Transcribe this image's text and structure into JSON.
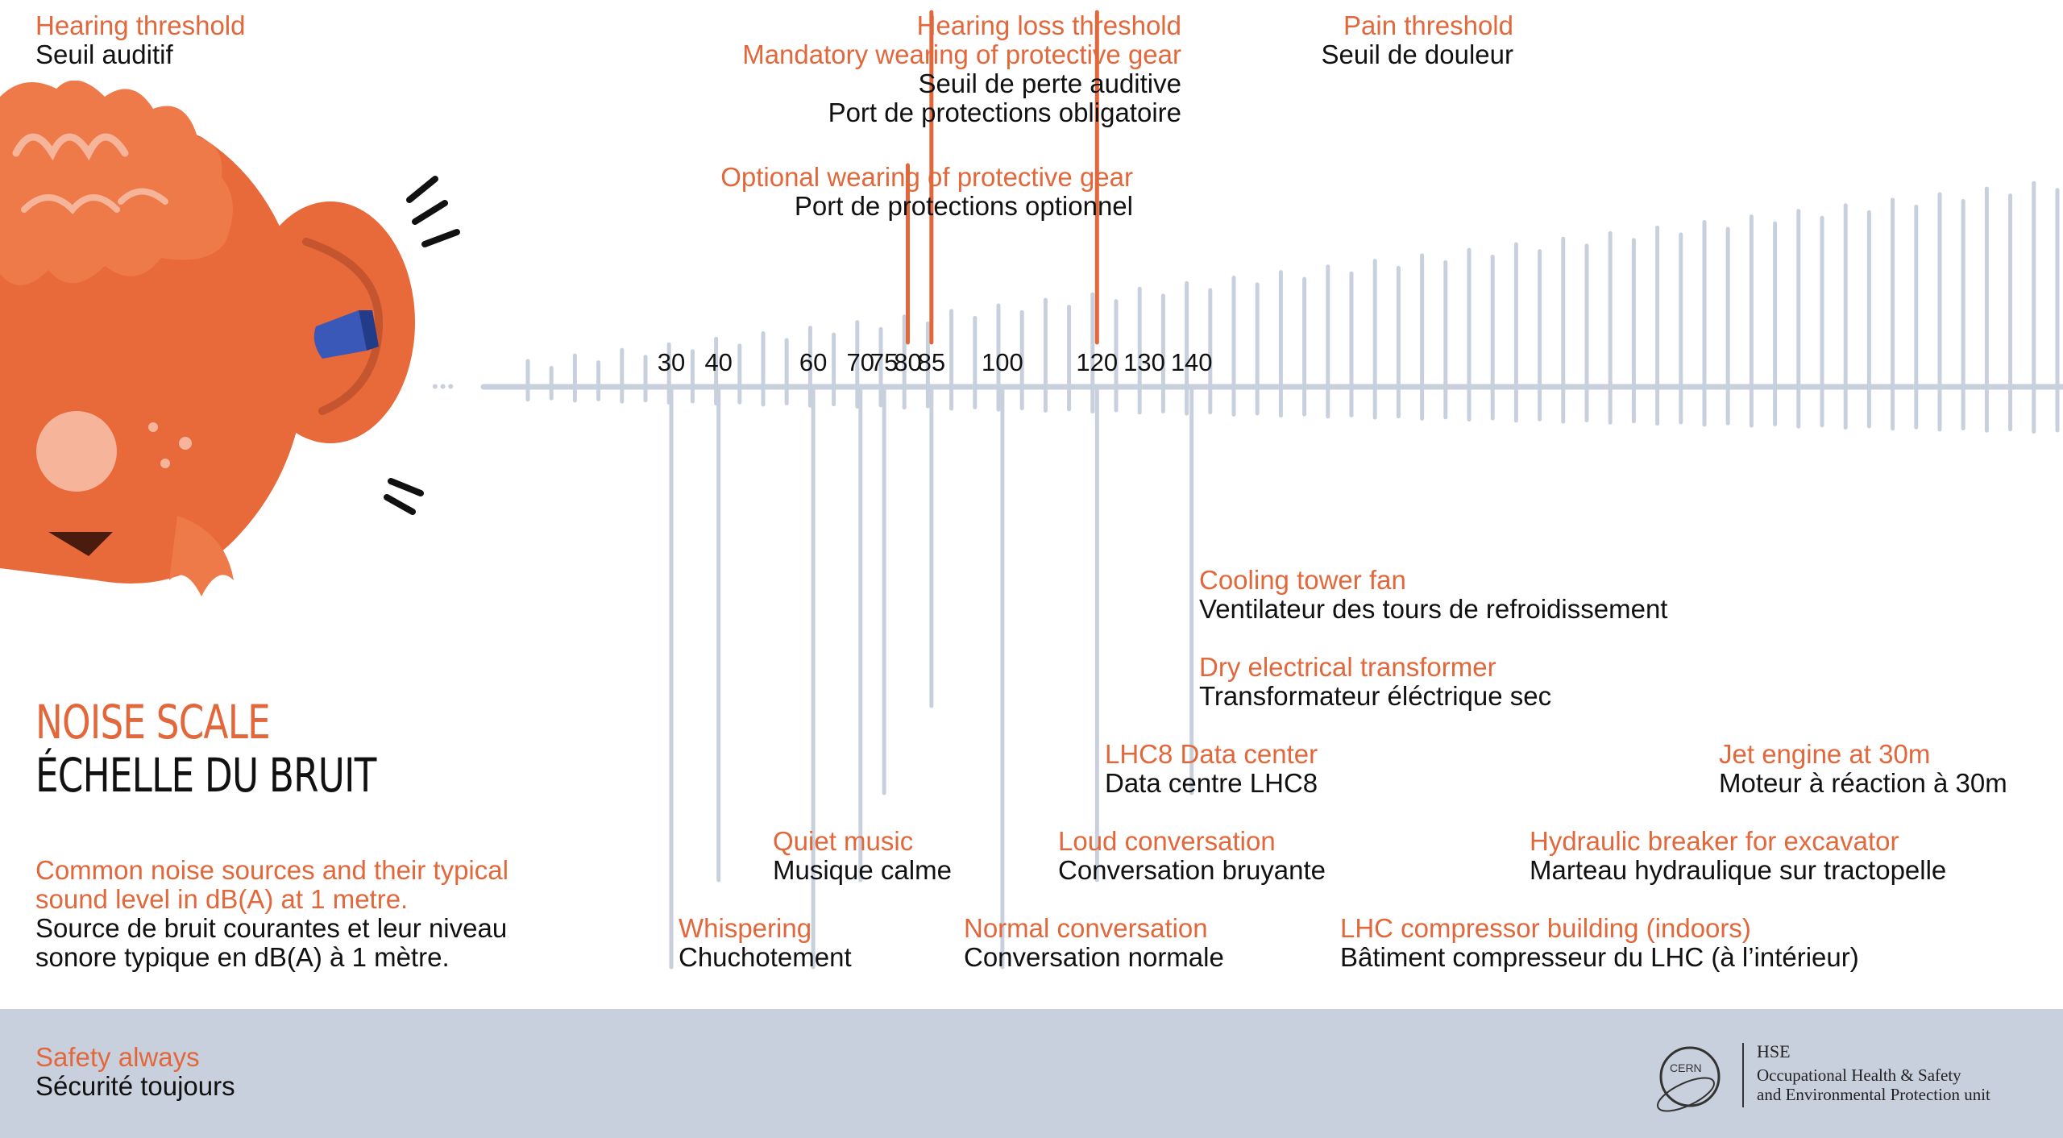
{
  "scale": {
    "ticks": [
      30,
      40,
      60,
      70,
      75,
      80,
      85,
      100,
      120,
      130,
      140
    ],
    "tick_labels": [
      "30",
      "40",
      "60",
      "70",
      "75",
      "80",
      "85",
      "100",
      "120",
      "130",
      "140"
    ],
    "ellipsis": "•••"
  },
  "thresholds": {
    "hearing": {
      "en": "Hearing threshold",
      "fr": "Seuil auditif"
    },
    "optional_gear": {
      "en": "Optional wearing of protective gear",
      "fr": "Port de protections optionnel",
      "db": 80
    },
    "hearing_loss": {
      "en1": "Hearing loss threshold",
      "en2": "Mandatory wearing of protective gear",
      "fr1": "Seuil de perte auditive",
      "fr2": "Port de protections obligatoire",
      "db": 85
    },
    "pain": {
      "en": "Pain threshold",
      "fr": "Seuil de douleur",
      "db": 120
    }
  },
  "sources": [
    {
      "db": 30,
      "en": "Whispering",
      "fr": "Chuchotement"
    },
    {
      "db": 40,
      "en": "Quiet music",
      "fr": "Musique calme"
    },
    {
      "db": 60,
      "en": "Normal conversation",
      "fr": "Conversation normale"
    },
    {
      "db": 70,
      "en": "Loud conversation",
      "fr": "Conversation bruyante"
    },
    {
      "db": 75,
      "en": "LHC8 Data center",
      "fr": "Data centre LHC8"
    },
    {
      "db": 85,
      "en": "Cooling tower fan",
      "fr": "Ventilateur des tours de refroidissement"
    },
    {
      "db": 85,
      "en": "Dry electrical transformer",
      "fr": "Transformateur éléctrique sec"
    },
    {
      "db": 100,
      "en": "LHC compressor building (indoors)",
      "fr": "Bâtiment compresseur du LHC (à l’intérieur)"
    },
    {
      "db": 120,
      "en": "Hydraulic breaker for excavator",
      "fr": "Marteau hydraulique sur tractopelle"
    },
    {
      "db": 140,
      "en": "Jet engine at 30m",
      "fr": "Moteur à réaction à 30m"
    }
  ],
  "title": {
    "en": "NOISE SCALE",
    "fr": "ÉCHELLE DU BRUIT"
  },
  "subtitle": {
    "en1": "Common noise sources and their typical",
    "en2": "sound level in dB(A) at 1 metre.",
    "fr1": "Source de bruit courantes et leur niveau",
    "fr2": "sonore typique en dB(A) à 1 mètre."
  },
  "footer": {
    "en": "Safety always",
    "fr": "Sécurité toujours",
    "logo_text": "CERN",
    "unit": "HSE",
    "unit_line1": "Occupational Health & Safety",
    "unit_line2": "and Environmental Protection unit"
  },
  "colors": {
    "accent": "#e2683c",
    "scale": "#c9d0dd",
    "threshold": "#e2683c",
    "text": "#111111",
    "footer": "#c9d0dd",
    "ear_blue": "#3a58b8"
  },
  "icons": [
    "ear-character-icon",
    "cern-logo-icon"
  ]
}
